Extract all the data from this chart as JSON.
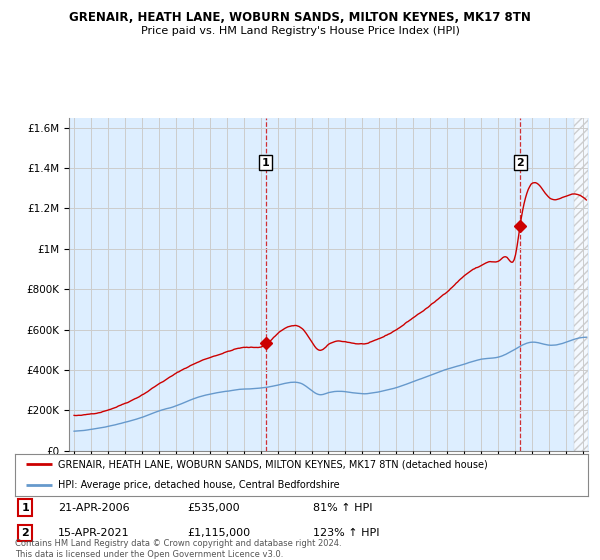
{
  "title": "GRENAIR, HEATH LANE, WOBURN SANDS, MILTON KEYNES, MK17 8TN",
  "subtitle": "Price paid vs. HM Land Registry's House Price Index (HPI)",
  "legend_line1": "GRENAIR, HEATH LANE, WOBURN SANDS, MILTON KEYNES, MK17 8TN (detached house)",
  "legend_line2": "HPI: Average price, detached house, Central Bedfordshire",
  "footnote": "Contains HM Land Registry data © Crown copyright and database right 2024.\nThis data is licensed under the Open Government Licence v3.0.",
  "sale1_date": "21-APR-2006",
  "sale1_price": "£535,000",
  "sale1_hpi": "81% ↑ HPI",
  "sale2_date": "15-APR-2021",
  "sale2_price": "£1,115,000",
  "sale2_hpi": "123% ↑ HPI",
  "sale1_x": 2006.3,
  "sale1_y": 535000,
  "sale2_x": 2021.3,
  "sale2_y": 1115000,
  "red_color": "#cc0000",
  "blue_color": "#6699cc",
  "fill_color": "#ddeeff",
  "hatch_start": 2024.5,
  "ylim": [
    0,
    1650000
  ],
  "xlim": [
    1994.7,
    2025.3
  ],
  "background": "#ffffff",
  "grid_color": "#cccccc",
  "title_fontsize": 8.5,
  "subtitle_fontsize": 8.0
}
